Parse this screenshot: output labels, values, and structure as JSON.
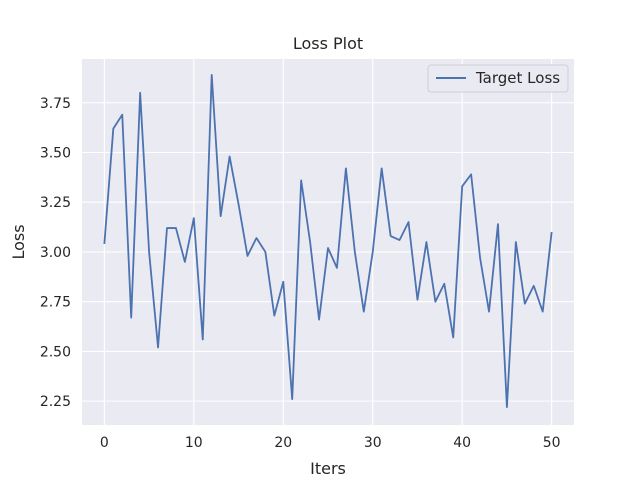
{
  "chart_data": {
    "type": "line",
    "title": "Loss Plot",
    "xlabel": "Iters",
    "ylabel": "Loss",
    "xlim": [
      -2.5,
      52.5
    ],
    "ylim": [
      2.13,
      3.97
    ],
    "xticks": [
      0,
      10,
      20,
      30,
      40,
      50
    ],
    "xtick_labels": [
      "0",
      "10",
      "20",
      "30",
      "40",
      "50"
    ],
    "yticks": [
      2.25,
      2.5,
      2.75,
      3.0,
      3.25,
      3.5,
      3.75
    ],
    "ytick_labels": [
      "2.25",
      "2.50",
      "2.75",
      "3.00",
      "3.25",
      "3.50",
      "3.75"
    ],
    "grid": true,
    "legend_position": "top-right",
    "x": [
      0,
      1,
      2,
      3,
      4,
      5,
      6,
      7,
      8,
      9,
      10,
      11,
      12,
      13,
      14,
      15,
      16,
      17,
      18,
      19,
      20,
      21,
      22,
      23,
      24,
      25,
      26,
      27,
      28,
      29,
      30,
      31,
      32,
      33,
      34,
      35,
      36,
      37,
      38,
      39,
      40,
      41,
      42,
      43,
      44,
      45,
      46,
      47,
      48,
      49,
      50
    ],
    "series": [
      {
        "name": "Target Loss",
        "color": "#4c72b0",
        "values": [
          3.04,
          3.62,
          3.69,
          2.67,
          3.8,
          3.0,
          2.52,
          3.12,
          3.12,
          2.95,
          3.17,
          2.56,
          3.89,
          3.18,
          3.48,
          3.24,
          2.98,
          3.07,
          3.0,
          2.68,
          2.85,
          2.26,
          3.36,
          3.05,
          2.66,
          3.02,
          2.92,
          3.42,
          3.0,
          2.7,
          3.0,
          3.42,
          3.08,
          3.06,
          3.15,
          2.76,
          3.05,
          2.75,
          2.84,
          2.57,
          3.33,
          3.39,
          2.97,
          2.7,
          3.14,
          2.22,
          3.05,
          2.74,
          2.83,
          2.7,
          3.1
        ]
      }
    ],
    "colors": {
      "plot_background": "#eaeaf2",
      "grid": "#ffffff"
    }
  }
}
